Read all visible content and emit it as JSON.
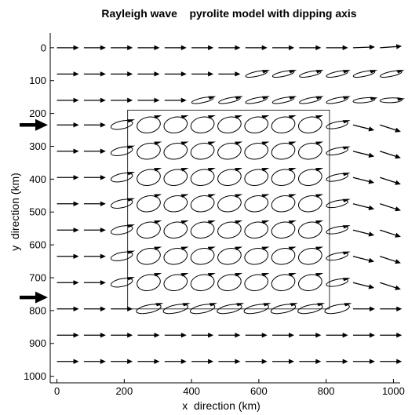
{
  "chart_data": {
    "type": "vector-field",
    "title": "Rayleigh wave    pyrolite model with dipping axis",
    "xlabel": "x  direction (km)",
    "ylabel": "y  direction (km)",
    "xlim": [
      -20,
      1020
    ],
    "ylim": [
      1020,
      -45
    ],
    "y_axis_inverted": true,
    "xticks": [
      0,
      200,
      400,
      600,
      800,
      1000
    ],
    "yticks": [
      0,
      100,
      200,
      300,
      400,
      500,
      600,
      700,
      800,
      900,
      1000
    ],
    "grid": false,
    "x_positions": [
      0,
      80,
      160,
      240,
      320,
      400,
      480,
      560,
      640,
      720,
      800,
      880,
      960
    ],
    "rows": [
      {
        "y": 0,
        "kind": "arrow",
        "angle_deg": [
          0,
          0,
          0,
          0,
          0,
          0,
          0,
          0,
          0,
          0,
          0,
          -2,
          -4
        ]
      },
      {
        "y": 80,
        "kind": "mixed",
        "angle_deg": [
          0,
          0,
          0,
          0,
          0,
          0,
          0,
          0,
          0,
          0,
          0,
          0,
          0
        ],
        "ellipse_from_x": 560
      },
      {
        "y": 160,
        "kind": "mixed",
        "angle_deg": [
          0,
          0,
          0,
          0,
          0,
          0,
          0,
          0,
          0,
          0,
          0,
          6,
          10
        ],
        "ellipse_from_x": 400
      },
      {
        "y": 235,
        "kind": "orbit",
        "angle_deg": [
          0,
          0,
          0,
          0,
          0,
          0,
          0,
          0,
          0,
          0,
          8,
          14,
          18
        ]
      },
      {
        "y": 315,
        "kind": "orbit",
        "angle_deg": [
          0,
          0,
          0,
          0,
          0,
          0,
          0,
          0,
          0,
          0,
          8,
          14,
          18
        ]
      },
      {
        "y": 395,
        "kind": "orbit",
        "angle_deg": [
          0,
          0,
          0,
          0,
          0,
          0,
          0,
          0,
          0,
          0,
          8,
          14,
          18
        ]
      },
      {
        "y": 475,
        "kind": "orbit",
        "angle_deg": [
          0,
          0,
          0,
          0,
          0,
          0,
          0,
          0,
          0,
          0,
          8,
          14,
          18
        ]
      },
      {
        "y": 555,
        "kind": "orbit",
        "angle_deg": [
          0,
          0,
          0,
          0,
          0,
          0,
          0,
          0,
          0,
          0,
          8,
          14,
          18
        ]
      },
      {
        "y": 635,
        "kind": "orbit",
        "angle_deg": [
          0,
          0,
          0,
          0,
          0,
          0,
          0,
          0,
          0,
          0,
          8,
          14,
          18
        ]
      },
      {
        "y": 715,
        "kind": "orbit",
        "angle_deg": [
          0,
          0,
          0,
          0,
          0,
          0,
          0,
          0,
          0,
          0,
          8,
          14,
          18
        ]
      },
      {
        "y": 795,
        "kind": "flat",
        "angle_deg": [
          0,
          0,
          0,
          0,
          0,
          0,
          0,
          0,
          0,
          0,
          0,
          0,
          0
        ]
      },
      {
        "y": 875,
        "kind": "arrow",
        "angle_deg": [
          0,
          0,
          0,
          0,
          0,
          0,
          0,
          0,
          0,
          0,
          0,
          0,
          0
        ]
      },
      {
        "y": 955,
        "kind": "arrow",
        "angle_deg": [
          0,
          0,
          0,
          0,
          0,
          0,
          0,
          0,
          0,
          0,
          0,
          0,
          0
        ]
      }
    ],
    "anomaly_box": {
      "x": [
        210,
        810
      ],
      "y": [
        190,
        795
      ]
    },
    "incident_markers_y": [
      235,
      760
    ]
  }
}
